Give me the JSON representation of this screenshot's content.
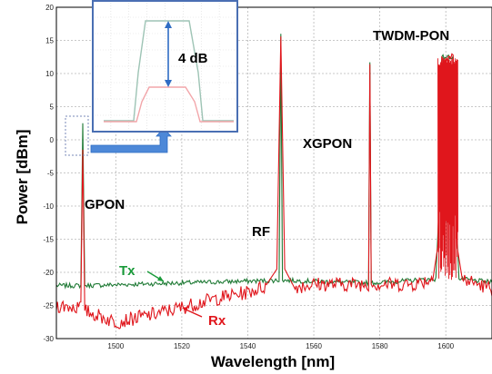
{
  "chart_data": {
    "type": "line",
    "xlabel": "Wavelength [nm]",
    "ylabel": "Power [dBm]",
    "xlim": [
      1482,
      1614
    ],
    "ylim": [
      -30,
      20
    ],
    "xticks": [
      1500,
      1520,
      1540,
      1560,
      1580,
      1600
    ],
    "yticks": [
      -30,
      -25,
      -20,
      -15,
      -10,
      -5,
      0,
      5,
      10,
      15,
      20
    ],
    "grid": true,
    "series": [
      {
        "name": "Tx",
        "color": "#1f7a35",
        "points": [
          [
            1482,
            -22
          ],
          [
            1489.4,
            -22
          ],
          [
            1490,
            2.5
          ],
          [
            1490.6,
            -22
          ],
          [
            1549.5,
            -21.2
          ],
          [
            1550,
            16
          ],
          [
            1550.5,
            -21.2
          ],
          [
            1576.6,
            -21.6
          ],
          [
            1577,
            11.7
          ],
          [
            1577.4,
            -21.6
          ],
          [
            1597,
            -21
          ],
          [
            1598,
            -10
          ],
          [
            1598.8,
            12.5
          ],
          [
            1602.2,
            12.5
          ],
          [
            1603,
            -10
          ],
          [
            1604,
            -21
          ],
          [
            1614,
            -21.5
          ]
        ]
      },
      {
        "name": "Rx",
        "color": "#e0161c",
        "points": [
          [
            1482,
            -25
          ],
          [
            1489.4,
            -25.3
          ],
          [
            1490,
            -1.5
          ],
          [
            1490.6,
            -25.8
          ],
          [
            1500,
            -27.5
          ],
          [
            1510,
            -26.5
          ],
          [
            1520,
            -25.3
          ],
          [
            1530,
            -24
          ],
          [
            1540,
            -23
          ],
          [
            1546,
            -22
          ],
          [
            1548.8,
            -19.5
          ],
          [
            1550,
            15.6
          ],
          [
            1551.2,
            -19.5
          ],
          [
            1554,
            -22.2
          ],
          [
            1560,
            -21.8
          ],
          [
            1570,
            -21.8
          ],
          [
            1576.6,
            -21.8
          ],
          [
            1577,
            11.4
          ],
          [
            1577.4,
            -21.8
          ],
          [
            1590,
            -21.8
          ],
          [
            1596,
            -21
          ],
          [
            1597.6,
            -16
          ],
          [
            1598.8,
            12.5
          ],
          [
            1602.2,
            12.5
          ],
          [
            1603.4,
            -16
          ],
          [
            1605,
            -21
          ],
          [
            1614,
            -22.5
          ]
        ]
      }
    ],
    "annotations": {
      "gpon": "GPON",
      "rf": "RF",
      "xgpon": "XGPON",
      "twdm": "TWDM-PON",
      "tx": "Tx",
      "rx": "Rx",
      "inset_delta": "4 dB"
    },
    "colors": {
      "tx": "#1f7a35",
      "rx": "#e0161c",
      "tx_label": "#1a9a3a",
      "grid": "#b8b8b8",
      "inset_border": "#4a6fb3",
      "arrow": "#2f6cc4"
    }
  }
}
